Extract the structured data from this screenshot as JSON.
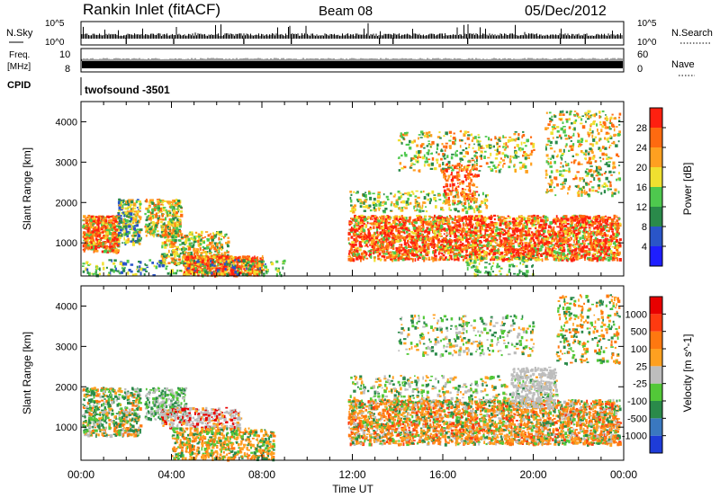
{
  "header": {
    "title": "Rankin Inlet (fitACF)",
    "beam": "Beam 08",
    "date": "05/Dec/2012"
  },
  "top_panels": {
    "nsky": {
      "label": "N.Sky",
      "ticks": [
        "10^5",
        "10^0"
      ]
    },
    "nsearch": {
      "label": "N.Search",
      "ticks_right": [
        "10^5",
        "10^0"
      ]
    },
    "freq": {
      "label_line1": "Freq.",
      "label_line2": "[MHz]",
      "ticks": [
        "10",
        "8"
      ]
    },
    "nave": {
      "label": "Nave",
      "ticks_right": [
        "60",
        "0"
      ]
    },
    "cpid": {
      "label": "CPID",
      "value": "twofsound -3501"
    }
  },
  "chart_data": [
    {
      "type": "heatmap",
      "name": "power-panel",
      "ylabel": "Slant Range [km]",
      "xlabel": "",
      "xlim": [
        "00:00",
        "24:00"
      ],
      "ylim": [
        180,
        4500
      ],
      "yticks": [
        "1000",
        "2000",
        "3000",
        "4000"
      ],
      "colorbar": {
        "label": "Power [dB]",
        "ticks": [
          "4",
          "8",
          "12",
          "16",
          "20",
          "24",
          "28"
        ],
        "colors": [
          "#1e1eff",
          "#2a55c8",
          "#2a8a4a",
          "#4ec84e",
          "#f0e030",
          "#ffa020",
          "#ff6a10",
          "#ff2010"
        ]
      }
    },
    {
      "type": "heatmap",
      "name": "velocity-panel",
      "ylabel": "Slant Range [km]",
      "xlabel": "Time UT",
      "xlim": [
        "00:00",
        "24:00"
      ],
      "ylim": [
        180,
        4500
      ],
      "yticks": [
        "1000",
        "2000",
        "3000",
        "4000"
      ],
      "xticks": [
        "00:00",
        "04:00",
        "08:00",
        "12:00",
        "16:00",
        "20:00",
        "00:00"
      ],
      "colorbar": {
        "label": "Velocity [m s^-1]",
        "ticks": [
          "1000",
          "500",
          "100",
          "25",
          "-25",
          "-100",
          "-500",
          "-1000"
        ],
        "colors": [
          "#1e3cd8",
          "#3a78c0",
          "#2a8a4a",
          "#52c838",
          "#bdbdbd",
          "#ffa020",
          "#ff7810",
          "#ff3a10",
          "#e80000"
        ]
      }
    }
  ]
}
